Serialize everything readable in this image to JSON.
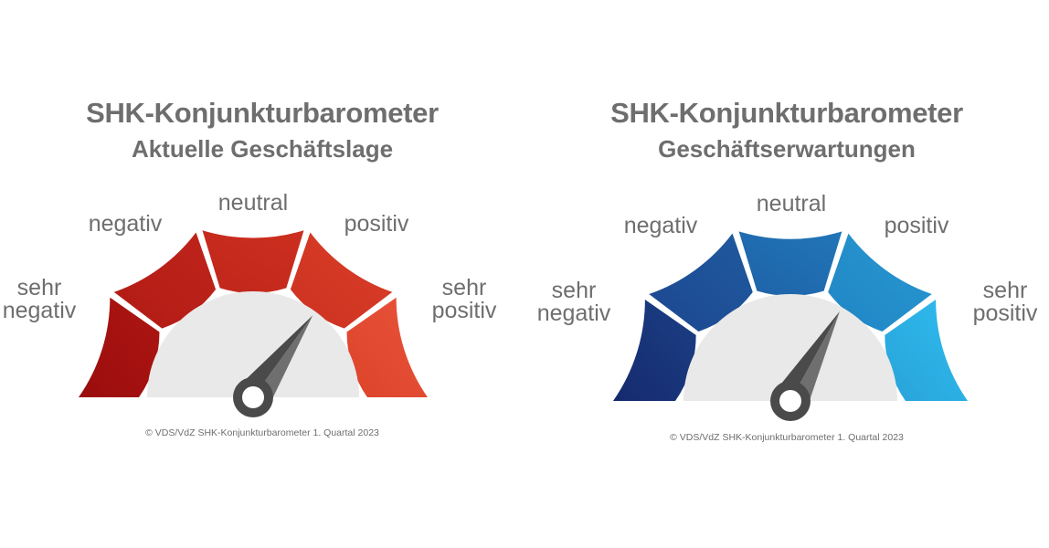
{
  "chart_data": [
    {
      "type": "gauge",
      "title": "SHK-Konjunkturbarometer",
      "subtitle": "Aktuelle Geschäftslage",
      "segments": [
        {
          "label": [
            "sehr",
            "negativ"
          ]
        },
        {
          "label": [
            "negativ"
          ]
        },
        {
          "label": [
            "neutral"
          ]
        },
        {
          "label": [
            "positiv"
          ]
        },
        {
          "label": [
            "sehr",
            "positiv"
          ]
        }
      ],
      "segment_colors": [
        [
          "#9a0d0d",
          "#ad1612"
        ],
        [
          "#b11b15",
          "#bf241a"
        ],
        [
          "#c0261b",
          "#cc2f1f"
        ],
        [
          "#cd3222",
          "#d93e27"
        ],
        [
          "#dd442a",
          "#e8533a"
        ]
      ],
      "needle_value": 0.7,
      "copyright": "© VDS/VdZ SHK-Konjunkturbarometer 1. Quartal 2023"
    },
    {
      "type": "gauge",
      "title": "SHK-Konjunkturbarometer",
      "subtitle": "Geschäftserwartungen",
      "segments": [
        {
          "label": [
            "sehr",
            "negativ"
          ]
        },
        {
          "label": [
            "negativ"
          ]
        },
        {
          "label": [
            "neutral"
          ]
        },
        {
          "label": [
            "positiv"
          ]
        },
        {
          "label": [
            "sehr",
            "positiv"
          ]
        }
      ],
      "segment_colors": [
        [
          "#162a6e",
          "#1b3f85"
        ],
        [
          "#1d4790",
          "#1f5a9f"
        ],
        [
          "#1f62a8",
          "#2076b8"
        ],
        [
          "#2185c4",
          "#2698d2"
        ],
        [
          "#28a3da",
          "#2fbcee"
        ]
      ],
      "needle_value": 0.66,
      "copyright": "© VDS/VdZ SHK-Konjunkturbarometer 1. Quartal 2023"
    }
  ]
}
